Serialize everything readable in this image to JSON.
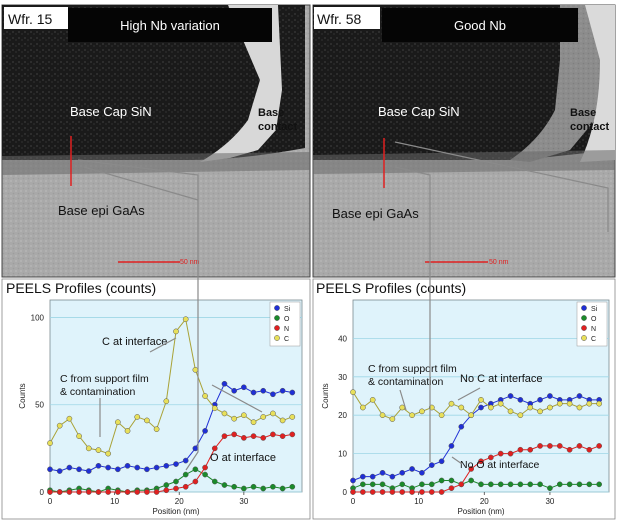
{
  "left_panel": {
    "wafer": "Wfr. 15",
    "title": "High Nb variation",
    "label_cap": "Base Cap SiN",
    "label_contact_1": "Base",
    "label_contact_2": "contact",
    "label_epi": "Base epi GaAs",
    "scale": "50 nm",
    "plot_title": "PEELS Profiles (counts)",
    "callouts": [
      "C at interface",
      "C from support film",
      "& contamination",
      "O at interface"
    ]
  },
  "right_panel": {
    "wafer": "Wfr. 58",
    "title": "Good Nb",
    "label_cap": "Base Cap SiN",
    "label_contact_1": "Base",
    "label_contact_2": "contact",
    "label_epi": "Base epi GaAs",
    "scale": "50 nm",
    "plot_title": "PEELS Profiles (counts)",
    "callouts": [
      "C from support film",
      "& contamination",
      "No C at interface",
      "No O at interface"
    ]
  },
  "colors": {
    "si": "#1f2fd6",
    "o": "#1a8a2a",
    "n": "#e02020",
    "c": "#e8e05a",
    "plot_bg": "#dff3fb"
  },
  "chart_data": [
    {
      "type": "line",
      "xlabel": "Position (nm)",
      "ylabel": "Counts",
      "xlim": [
        0,
        39
      ],
      "ylim": [
        0,
        110
      ],
      "xticks": [
        0,
        10,
        20,
        30
      ],
      "yticks": [
        0,
        50,
        100
      ],
      "legend_position": "top-right",
      "series": [
        {
          "name": "Si",
          "color": "#1f2fd6",
          "x": [
            0,
            1.5,
            3,
            4.5,
            6,
            7.5,
            9,
            10.5,
            12,
            13.5,
            15,
            16.5,
            18,
            19.5,
            21,
            22.5,
            24,
            25.5,
            27,
            28.5,
            30,
            31.5,
            33,
            34.5,
            36,
            37.5
          ],
          "y": [
            13,
            12,
            14,
            13,
            12,
            15,
            14,
            13,
            15,
            14,
            13,
            14,
            15,
            16,
            18,
            25,
            35,
            50,
            62,
            58,
            60,
            57,
            58,
            56,
            58,
            57
          ]
        },
        {
          "name": "O",
          "color": "#1a8a2a",
          "x": [
            0,
            1.5,
            3,
            4.5,
            6,
            7.5,
            9,
            10.5,
            12,
            13.5,
            15,
            16.5,
            18,
            19.5,
            21,
            22.5,
            24,
            25.5,
            27,
            28.5,
            30,
            31.5,
            33,
            34.5,
            36,
            37.5
          ],
          "y": [
            1,
            0,
            1,
            2,
            1,
            0,
            2,
            1,
            0,
            1,
            1,
            2,
            4,
            6,
            10,
            13,
            10,
            6,
            4,
            3,
            2,
            3,
            2,
            3,
            2,
            3
          ]
        },
        {
          "name": "N",
          "color": "#e02020",
          "x": [
            0,
            1.5,
            3,
            4.5,
            6,
            7.5,
            9,
            10.5,
            12,
            13.5,
            15,
            16.5,
            18,
            19.5,
            21,
            22.5,
            24,
            25.5,
            27,
            28.5,
            30,
            31.5,
            33,
            34.5,
            36,
            37.5
          ],
          "y": [
            0,
            0,
            0,
            0,
            0,
            0,
            0,
            0,
            0,
            0,
            0,
            0,
            1,
            2,
            3,
            6,
            14,
            25,
            32,
            33,
            31,
            32,
            31,
            33,
            32,
            33
          ]
        },
        {
          "name": "C",
          "color": "#e8e05a",
          "x": [
            0,
            1.5,
            3,
            4.5,
            6,
            7.5,
            9,
            10.5,
            12,
            13.5,
            15,
            16.5,
            18,
            19.5,
            21,
            22.5,
            24,
            25.5,
            27,
            28.5,
            30,
            31.5,
            33,
            34.5,
            36,
            37.5
          ],
          "y": [
            28,
            38,
            42,
            32,
            25,
            24,
            22,
            40,
            35,
            43,
            41,
            36,
            52,
            92,
            99,
            70,
            55,
            48,
            45,
            42,
            44,
            40,
            43,
            45,
            41,
            43
          ]
        }
      ]
    },
    {
      "type": "line",
      "xlabel": "Position (nm)",
      "ylabel": "Counts",
      "xlim": [
        0,
        39
      ],
      "ylim": [
        0,
        50
      ],
      "xticks": [
        0,
        10,
        20,
        30
      ],
      "yticks": [
        0,
        10,
        20,
        30,
        40
      ],
      "legend_position": "top-right",
      "series": [
        {
          "name": "Si",
          "color": "#1f2fd6",
          "x": [
            0,
            1.5,
            3,
            4.5,
            6,
            7.5,
            9,
            10.5,
            12,
            13.5,
            15,
            16.5,
            18,
            19.5,
            21,
            22.5,
            24,
            25.5,
            27,
            28.5,
            30,
            31.5,
            33,
            34.5,
            36,
            37.5
          ],
          "y": [
            3,
            4,
            4,
            5,
            4,
            5,
            6,
            5,
            7,
            8,
            12,
            17,
            20,
            22,
            23,
            24,
            25,
            24,
            23,
            24,
            25,
            24,
            24,
            25,
            24,
            24
          ]
        },
        {
          "name": "O",
          "color": "#1a8a2a",
          "x": [
            0,
            1.5,
            3,
            4.5,
            6,
            7.5,
            9,
            10.5,
            12,
            13.5,
            15,
            16.5,
            18,
            19.5,
            21,
            22.5,
            24,
            25.5,
            27,
            28.5,
            30,
            31.5,
            33,
            34.5,
            36,
            37.5
          ],
          "y": [
            1,
            2,
            2,
            2,
            1,
            2,
            1,
            2,
            2,
            3,
            3,
            2,
            3,
            2,
            2,
            2,
            2,
            2,
            2,
            2,
            1,
            2,
            2,
            2,
            2,
            2
          ]
        },
        {
          "name": "N",
          "color": "#e02020",
          "x": [
            0,
            1.5,
            3,
            4.5,
            6,
            7.5,
            9,
            10.5,
            12,
            13.5,
            15,
            16.5,
            18,
            19.5,
            21,
            22.5,
            24,
            25.5,
            27,
            28.5,
            30,
            31.5,
            33,
            34.5,
            36,
            37.5
          ],
          "y": [
            0,
            0,
            0,
            0,
            0,
            0,
            0,
            0,
            0,
            0,
            1,
            2,
            6,
            8,
            9,
            10,
            10,
            11,
            11,
            12,
            12,
            12,
            11,
            12,
            11,
            12
          ]
        },
        {
          "name": "C",
          "color": "#e8e05a",
          "x": [
            0,
            1.5,
            3,
            4.5,
            6,
            7.5,
            9,
            10.5,
            12,
            13.5,
            15,
            16.5,
            18,
            19.5,
            21,
            22.5,
            24,
            25.5,
            27,
            28.5,
            30,
            31.5,
            33,
            34.5,
            36,
            37.5
          ],
          "y": [
            26,
            22,
            24,
            20,
            19,
            22,
            20,
            21,
            22,
            20,
            23,
            22,
            20,
            24,
            22,
            23,
            21,
            20,
            22,
            21,
            22,
            23,
            23,
            22,
            23,
            23
          ]
        }
      ]
    }
  ]
}
